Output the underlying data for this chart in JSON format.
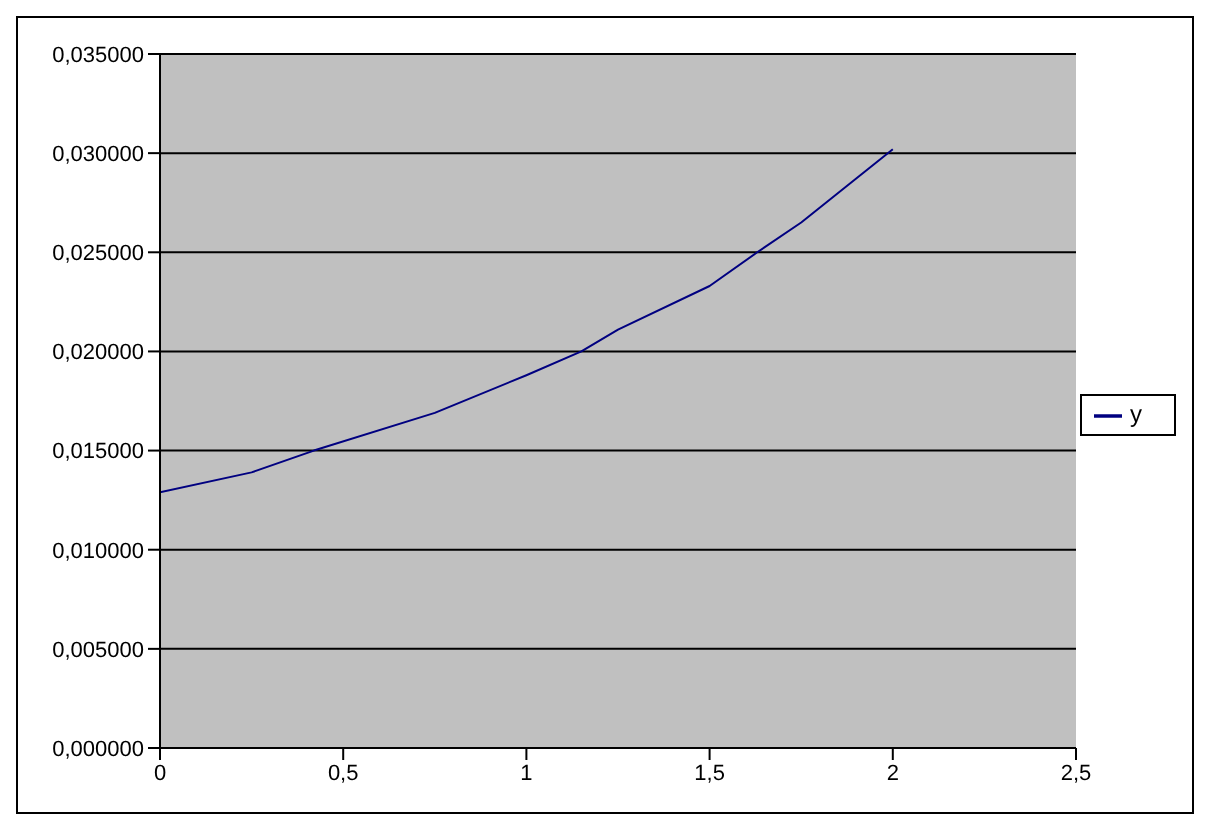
{
  "chart_data": {
    "type": "line",
    "x": [
      0,
      0.25,
      0.42,
      0.75,
      1,
      1.15,
      1.25,
      1.5,
      1.63,
      1.75,
      2
    ],
    "series": [
      {
        "name": "y",
        "color": "#000080",
        "values": [
          0.0129,
          0.0139,
          0.015,
          0.0169,
          0.0188,
          0.02,
          0.0211,
          0.0233,
          0.025,
          0.0265,
          0.0302
        ]
      }
    ],
    "xlim": [
      0,
      2.5
    ],
    "xticks": [
      0,
      {
        "value": 0.5,
        "label": "0,5"
      },
      1,
      {
        "value": 1.5,
        "label": "1,5"
      },
      2,
      {
        "value": 2.5,
        "label": "2,5"
      }
    ],
    "ylim": [
      0,
      0.035
    ],
    "yticks": [
      {
        "value": 0,
        "label": "0,000000"
      },
      {
        "value": 0.005,
        "label": "0,005000"
      },
      {
        "value": 0.01,
        "label": "0,010000"
      },
      {
        "value": 0.015,
        "label": "0,015000"
      },
      {
        "value": 0.02,
        "label": "0,020000"
      },
      {
        "value": 0.025,
        "label": "0,025000"
      },
      {
        "value": 0.03,
        "label": "0,030000"
      },
      {
        "value": 0.035,
        "label": "0,035000"
      }
    ],
    "grid": "y",
    "legend": "right",
    "marker": "none",
    "line_style": "solid"
  }
}
